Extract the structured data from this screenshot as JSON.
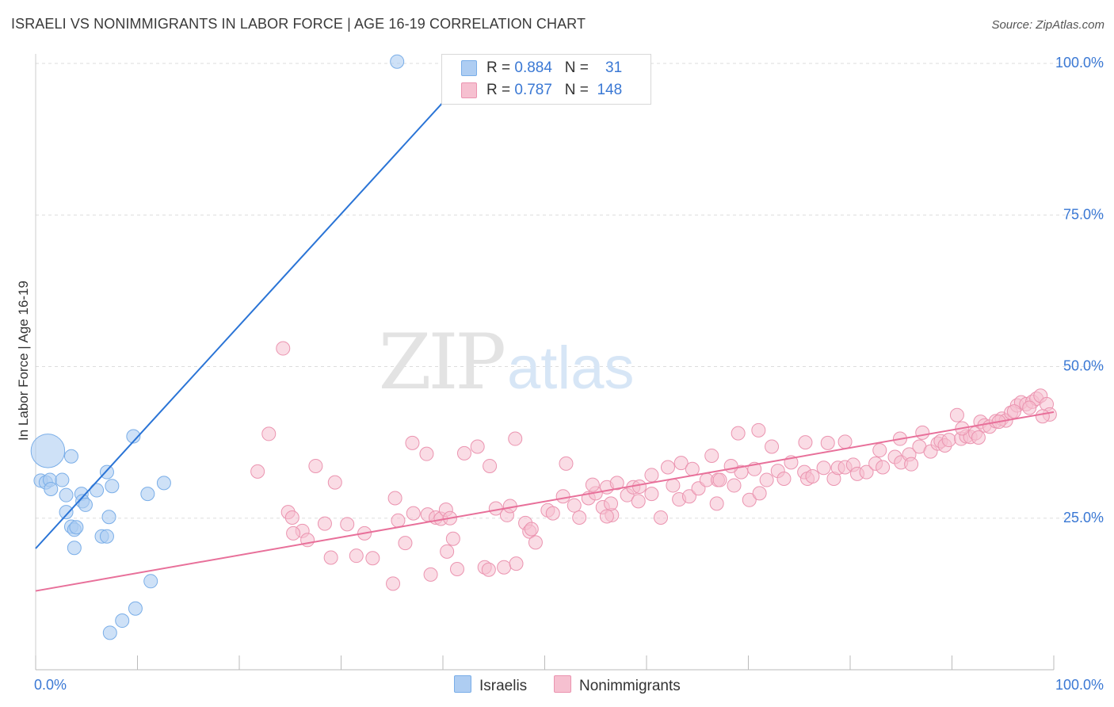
{
  "title": "ISRAELI VS NONIMMIGRANTS IN LABOR FORCE | AGE 16-19 CORRELATION CHART",
  "source": "Source: ZipAtlas.com",
  "watermark": {
    "zip": "ZIP",
    "atlas": "atlas"
  },
  "legend": {
    "rows": [
      {
        "r_label": "R =",
        "r_value": "0.884",
        "n_label": "N =",
        "n_value": "31"
      },
      {
        "r_label": "R =",
        "r_value": "0.787",
        "n_label": "N =",
        "n_value": "148"
      }
    ]
  },
  "bottom_legend": {
    "series1": "Israelis",
    "series2": "Nonimmigrants"
  },
  "colors": {
    "blue_fill": "#aecdf2",
    "blue_stroke": "#7aaee8",
    "blue_line": "#2a74d6",
    "pink_fill": "#f6c0d0",
    "pink_stroke": "#eb94b0",
    "pink_line": "#e8709a",
    "axis_label": "#3a78d4",
    "grid": "#dddddd"
  },
  "chart_data": {
    "type": "scatter",
    "title": "ISRAELI VS NONIMMIGRANTS IN LABOR FORCE | AGE 16-19 CORRELATION CHART",
    "xlabel": "",
    "ylabel": "In Labor Force | Age 16-19",
    "xlim": [
      0,
      100
    ],
    "ylim": [
      0,
      102
    ],
    "x_tick_labels": [
      "0.0%",
      "100.0%"
    ],
    "y_ticks": [
      25,
      50,
      75,
      100
    ],
    "y_tick_labels": [
      "25.0%",
      "50.0%",
      "75.0%",
      "100.0%"
    ],
    "grid": true,
    "legend_position": "top-center",
    "series": [
      {
        "name": "Israelis",
        "r": 0.884,
        "n": 31,
        "trend": {
          "x": [
            0,
            43.5
          ],
          "y": [
            20,
            100
          ]
        },
        "points": [
          [
            1.2,
            36.1,
            2.5
          ],
          [
            0.5,
            31.2,
            1
          ],
          [
            1.0,
            30.9,
            1
          ],
          [
            1.4,
            31.3,
            1
          ],
          [
            1.5,
            29.8,
            1
          ],
          [
            2.6,
            31.3,
            1
          ],
          [
            3.0,
            28.8,
            1
          ],
          [
            4.5,
            29.0,
            1
          ],
          [
            6.0,
            29.6,
            1
          ],
          [
            7.5,
            30.3,
            1
          ],
          [
            3.5,
            35.2,
            1
          ],
          [
            4.6,
            27.8,
            1
          ],
          [
            4.9,
            27.2,
            1
          ],
          [
            7.0,
            32.6,
            1
          ],
          [
            9.6,
            38.5,
            1
          ],
          [
            11.0,
            29.0,
            1
          ],
          [
            12.6,
            30.8,
            1
          ],
          [
            3.0,
            26.0,
            1
          ],
          [
            3.5,
            23.6,
            1
          ],
          [
            3.8,
            23.1,
            1
          ],
          [
            4.0,
            23.5,
            1
          ],
          [
            6.5,
            22.0,
            1
          ],
          [
            7.0,
            22.0,
            1
          ],
          [
            7.2,
            25.2,
            1
          ],
          [
            3.8,
            20.1,
            1
          ],
          [
            11.3,
            14.6,
            1
          ],
          [
            9.8,
            10.1,
            1
          ],
          [
            8.5,
            8.1,
            1
          ],
          [
            7.3,
            6.1,
            1
          ],
          [
            35.5,
            100.3,
            1
          ],
          [
            43.1,
            100.3,
            1
          ]
        ]
      },
      {
        "name": "Nonimmigrants",
        "r": 0.787,
        "n": 148,
        "trend": {
          "x": [
            0,
            100
          ],
          "y": [
            13.0,
            42.5
          ]
        },
        "points": [
          [
            24.3,
            53.0
          ],
          [
            22.9,
            38.9
          ],
          [
            21.8,
            32.7
          ],
          [
            27.5,
            33.6
          ],
          [
            29.4,
            30.9
          ],
          [
            35.3,
            28.3
          ],
          [
            24.8,
            26.0
          ],
          [
            25.2,
            25.1
          ],
          [
            26.2,
            22.9
          ],
          [
            26.7,
            21.4
          ],
          [
            25.3,
            22.5
          ],
          [
            28.4,
            24.1
          ],
          [
            30.6,
            24.0
          ],
          [
            32.3,
            22.5
          ],
          [
            29.0,
            18.5
          ],
          [
            31.5,
            18.8
          ],
          [
            33.1,
            18.4
          ],
          [
            35.6,
            24.6
          ],
          [
            36.3,
            20.9
          ],
          [
            38.5,
            25.6
          ],
          [
            39.3,
            25.1
          ],
          [
            39.8,
            24.9
          ],
          [
            40.4,
            19.5
          ],
          [
            40.3,
            26.4
          ],
          [
            41.0,
            21.6
          ],
          [
            41.4,
            16.6
          ],
          [
            38.8,
            15.7
          ],
          [
            35.1,
            14.2
          ],
          [
            37.1,
            25.8
          ],
          [
            40.7,
            25.0
          ],
          [
            45.2,
            26.6
          ],
          [
            46.3,
            25.5
          ],
          [
            46.6,
            27.0
          ],
          [
            48.1,
            24.2
          ],
          [
            44.1,
            16.9
          ],
          [
            44.5,
            16.5
          ],
          [
            46.0,
            16.9
          ],
          [
            47.2,
            17.5
          ],
          [
            48.5,
            22.8
          ],
          [
            49.1,
            21.0
          ],
          [
            48.7,
            23.2
          ],
          [
            50.3,
            26.3
          ],
          [
            50.8,
            25.8
          ],
          [
            51.8,
            28.6
          ],
          [
            52.9,
            27.1
          ],
          [
            53.4,
            25.1
          ],
          [
            54.3,
            28.3
          ],
          [
            55.0,
            29.1
          ],
          [
            55.7,
            26.8
          ],
          [
            56.6,
            25.5
          ],
          [
            56.1,
            25.3
          ],
          [
            56.5,
            27.4
          ],
          [
            58.1,
            28.8
          ],
          [
            58.7,
            30.1
          ],
          [
            59.3,
            30.2
          ],
          [
            59.2,
            27.8
          ],
          [
            60.5,
            29.0
          ],
          [
            61.4,
            25.1
          ],
          [
            62.6,
            30.4
          ],
          [
            63.2,
            28.1
          ],
          [
            64.2,
            28.6
          ],
          [
            65.1,
            29.9
          ],
          [
            65.9,
            31.3
          ],
          [
            66.9,
            27.4
          ],
          [
            67.0,
            31.3
          ],
          [
            67.2,
            31.3
          ],
          [
            68.6,
            30.4
          ],
          [
            69.3,
            32.6
          ],
          [
            70.1,
            28.0
          ],
          [
            71.1,
            29.1
          ],
          [
            71.8,
            31.3
          ],
          [
            72.9,
            32.8
          ],
          [
            73.5,
            31.5
          ],
          [
            74.2,
            34.2
          ],
          [
            75.5,
            32.6
          ],
          [
            75.8,
            31.5
          ],
          [
            76.3,
            31.9
          ],
          [
            77.4,
            33.3
          ],
          [
            78.4,
            31.5
          ],
          [
            78.8,
            33.3
          ],
          [
            79.5,
            33.4
          ],
          [
            80.3,
            33.8
          ],
          [
            80.7,
            32.3
          ],
          [
            81.6,
            32.6
          ],
          [
            82.5,
            34.0
          ],
          [
            83.2,
            33.4
          ],
          [
            84.4,
            35.1
          ],
          [
            85.0,
            34.2
          ],
          [
            85.8,
            35.5
          ],
          [
            86.0,
            33.9
          ],
          [
            86.8,
            36.8
          ],
          [
            87.9,
            36.0
          ],
          [
            88.6,
            37.3
          ],
          [
            88.9,
            37.7
          ],
          [
            89.3,
            37.0
          ],
          [
            89.7,
            37.9
          ],
          [
            90.9,
            38.1
          ],
          [
            91.4,
            38.5
          ],
          [
            91.8,
            38.4
          ],
          [
            92.3,
            39.0
          ],
          [
            92.8,
            40.9
          ],
          [
            93.2,
            40.3
          ],
          [
            93.7,
            40.1
          ],
          [
            94.3,
            41.0
          ],
          [
            94.9,
            41.4
          ],
          [
            95.3,
            41.1
          ],
          [
            95.8,
            42.4
          ],
          [
            96.4,
            43.6
          ],
          [
            96.8,
            44.1
          ],
          [
            97.3,
            43.8
          ],
          [
            97.9,
            44.2
          ],
          [
            98.3,
            44.7
          ],
          [
            98.7,
            45.2
          ],
          [
            99.3,
            43.8
          ],
          [
            99.6,
            42.1
          ],
          [
            37.0,
            37.4
          ],
          [
            38.4,
            35.6
          ],
          [
            43.4,
            36.8
          ],
          [
            42.1,
            35.7
          ],
          [
            44.6,
            33.6
          ],
          [
            47.1,
            38.1
          ],
          [
            52.1,
            34.0
          ],
          [
            54.7,
            30.5
          ],
          [
            56.1,
            30.1
          ],
          [
            57.1,
            30.8
          ],
          [
            60.5,
            32.1
          ],
          [
            62.1,
            33.4
          ],
          [
            63.4,
            34.1
          ],
          [
            64.5,
            33.1
          ],
          [
            66.4,
            35.3
          ],
          [
            68.3,
            33.6
          ],
          [
            70.6,
            33.1
          ],
          [
            72.3,
            36.8
          ],
          [
            75.6,
            37.5
          ],
          [
            77.8,
            37.4
          ],
          [
            79.5,
            37.6
          ],
          [
            82.9,
            36.2
          ],
          [
            84.9,
            38.1
          ],
          [
            87.1,
            39.1
          ],
          [
            90.5,
            42.0
          ],
          [
            92.6,
            38.3
          ],
          [
            94.6,
            40.9
          ],
          [
            96.1,
            42.6
          ],
          [
            97.6,
            43.2
          ],
          [
            98.9,
            41.8
          ],
          [
            69.0,
            39.0
          ],
          [
            71.0,
            39.5
          ],
          [
            91.0,
            39.8
          ]
        ]
      }
    ]
  }
}
